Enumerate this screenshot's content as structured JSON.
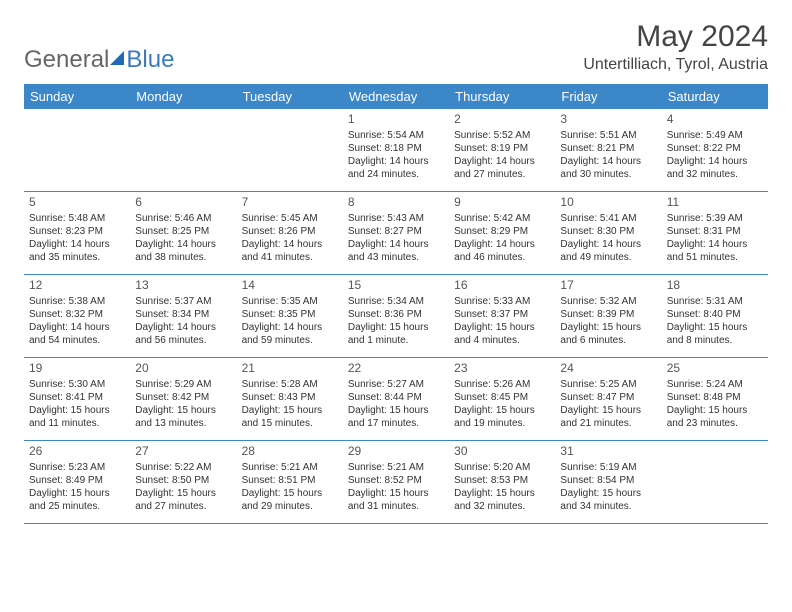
{
  "brand": {
    "part1": "General",
    "part2": "Blue"
  },
  "title": "May 2024",
  "location": "Untertilliach, Tyrol, Austria",
  "dayNames": [
    "Sunday",
    "Monday",
    "Tuesday",
    "Wednesday",
    "Thursday",
    "Friday",
    "Saturday"
  ],
  "colors": {
    "header_bg": "#3b87c8",
    "header_text": "#ffffff",
    "rule": "#3b87c8",
    "text": "#333333",
    "title": "#444444",
    "logo_gray": "#666666",
    "logo_blue": "#3b7bbf"
  },
  "weeks": [
    [
      null,
      null,
      null,
      {
        "n": "1",
        "sr": "Sunrise: 5:54 AM",
        "ss": "Sunset: 8:18 PM",
        "d1": "Daylight: 14 hours",
        "d2": "and 24 minutes."
      },
      {
        "n": "2",
        "sr": "Sunrise: 5:52 AM",
        "ss": "Sunset: 8:19 PM",
        "d1": "Daylight: 14 hours",
        "d2": "and 27 minutes."
      },
      {
        "n": "3",
        "sr": "Sunrise: 5:51 AM",
        "ss": "Sunset: 8:21 PM",
        "d1": "Daylight: 14 hours",
        "d2": "and 30 minutes."
      },
      {
        "n": "4",
        "sr": "Sunrise: 5:49 AM",
        "ss": "Sunset: 8:22 PM",
        "d1": "Daylight: 14 hours",
        "d2": "and 32 minutes."
      }
    ],
    [
      {
        "n": "5",
        "sr": "Sunrise: 5:48 AM",
        "ss": "Sunset: 8:23 PM",
        "d1": "Daylight: 14 hours",
        "d2": "and 35 minutes."
      },
      {
        "n": "6",
        "sr": "Sunrise: 5:46 AM",
        "ss": "Sunset: 8:25 PM",
        "d1": "Daylight: 14 hours",
        "d2": "and 38 minutes."
      },
      {
        "n": "7",
        "sr": "Sunrise: 5:45 AM",
        "ss": "Sunset: 8:26 PM",
        "d1": "Daylight: 14 hours",
        "d2": "and 41 minutes."
      },
      {
        "n": "8",
        "sr": "Sunrise: 5:43 AM",
        "ss": "Sunset: 8:27 PM",
        "d1": "Daylight: 14 hours",
        "d2": "and 43 minutes."
      },
      {
        "n": "9",
        "sr": "Sunrise: 5:42 AM",
        "ss": "Sunset: 8:29 PM",
        "d1": "Daylight: 14 hours",
        "d2": "and 46 minutes."
      },
      {
        "n": "10",
        "sr": "Sunrise: 5:41 AM",
        "ss": "Sunset: 8:30 PM",
        "d1": "Daylight: 14 hours",
        "d2": "and 49 minutes."
      },
      {
        "n": "11",
        "sr": "Sunrise: 5:39 AM",
        "ss": "Sunset: 8:31 PM",
        "d1": "Daylight: 14 hours",
        "d2": "and 51 minutes."
      }
    ],
    [
      {
        "n": "12",
        "sr": "Sunrise: 5:38 AM",
        "ss": "Sunset: 8:32 PM",
        "d1": "Daylight: 14 hours",
        "d2": "and 54 minutes."
      },
      {
        "n": "13",
        "sr": "Sunrise: 5:37 AM",
        "ss": "Sunset: 8:34 PM",
        "d1": "Daylight: 14 hours",
        "d2": "and 56 minutes."
      },
      {
        "n": "14",
        "sr": "Sunrise: 5:35 AM",
        "ss": "Sunset: 8:35 PM",
        "d1": "Daylight: 14 hours",
        "d2": "and 59 minutes."
      },
      {
        "n": "15",
        "sr": "Sunrise: 5:34 AM",
        "ss": "Sunset: 8:36 PM",
        "d1": "Daylight: 15 hours",
        "d2": "and 1 minute."
      },
      {
        "n": "16",
        "sr": "Sunrise: 5:33 AM",
        "ss": "Sunset: 8:37 PM",
        "d1": "Daylight: 15 hours",
        "d2": "and 4 minutes."
      },
      {
        "n": "17",
        "sr": "Sunrise: 5:32 AM",
        "ss": "Sunset: 8:39 PM",
        "d1": "Daylight: 15 hours",
        "d2": "and 6 minutes."
      },
      {
        "n": "18",
        "sr": "Sunrise: 5:31 AM",
        "ss": "Sunset: 8:40 PM",
        "d1": "Daylight: 15 hours",
        "d2": "and 8 minutes."
      }
    ],
    [
      {
        "n": "19",
        "sr": "Sunrise: 5:30 AM",
        "ss": "Sunset: 8:41 PM",
        "d1": "Daylight: 15 hours",
        "d2": "and 11 minutes."
      },
      {
        "n": "20",
        "sr": "Sunrise: 5:29 AM",
        "ss": "Sunset: 8:42 PM",
        "d1": "Daylight: 15 hours",
        "d2": "and 13 minutes."
      },
      {
        "n": "21",
        "sr": "Sunrise: 5:28 AM",
        "ss": "Sunset: 8:43 PM",
        "d1": "Daylight: 15 hours",
        "d2": "and 15 minutes."
      },
      {
        "n": "22",
        "sr": "Sunrise: 5:27 AM",
        "ss": "Sunset: 8:44 PM",
        "d1": "Daylight: 15 hours",
        "d2": "and 17 minutes."
      },
      {
        "n": "23",
        "sr": "Sunrise: 5:26 AM",
        "ss": "Sunset: 8:45 PM",
        "d1": "Daylight: 15 hours",
        "d2": "and 19 minutes."
      },
      {
        "n": "24",
        "sr": "Sunrise: 5:25 AM",
        "ss": "Sunset: 8:47 PM",
        "d1": "Daylight: 15 hours",
        "d2": "and 21 minutes."
      },
      {
        "n": "25",
        "sr": "Sunrise: 5:24 AM",
        "ss": "Sunset: 8:48 PM",
        "d1": "Daylight: 15 hours",
        "d2": "and 23 minutes."
      }
    ],
    [
      {
        "n": "26",
        "sr": "Sunrise: 5:23 AM",
        "ss": "Sunset: 8:49 PM",
        "d1": "Daylight: 15 hours",
        "d2": "and 25 minutes."
      },
      {
        "n": "27",
        "sr": "Sunrise: 5:22 AM",
        "ss": "Sunset: 8:50 PM",
        "d1": "Daylight: 15 hours",
        "d2": "and 27 minutes."
      },
      {
        "n": "28",
        "sr": "Sunrise: 5:21 AM",
        "ss": "Sunset: 8:51 PM",
        "d1": "Daylight: 15 hours",
        "d2": "and 29 minutes."
      },
      {
        "n": "29",
        "sr": "Sunrise: 5:21 AM",
        "ss": "Sunset: 8:52 PM",
        "d1": "Daylight: 15 hours",
        "d2": "and 31 minutes."
      },
      {
        "n": "30",
        "sr": "Sunrise: 5:20 AM",
        "ss": "Sunset: 8:53 PM",
        "d1": "Daylight: 15 hours",
        "d2": "and 32 minutes."
      },
      {
        "n": "31",
        "sr": "Sunrise: 5:19 AM",
        "ss": "Sunset: 8:54 PM",
        "d1": "Daylight: 15 hours",
        "d2": "and 34 minutes."
      },
      null
    ]
  ]
}
